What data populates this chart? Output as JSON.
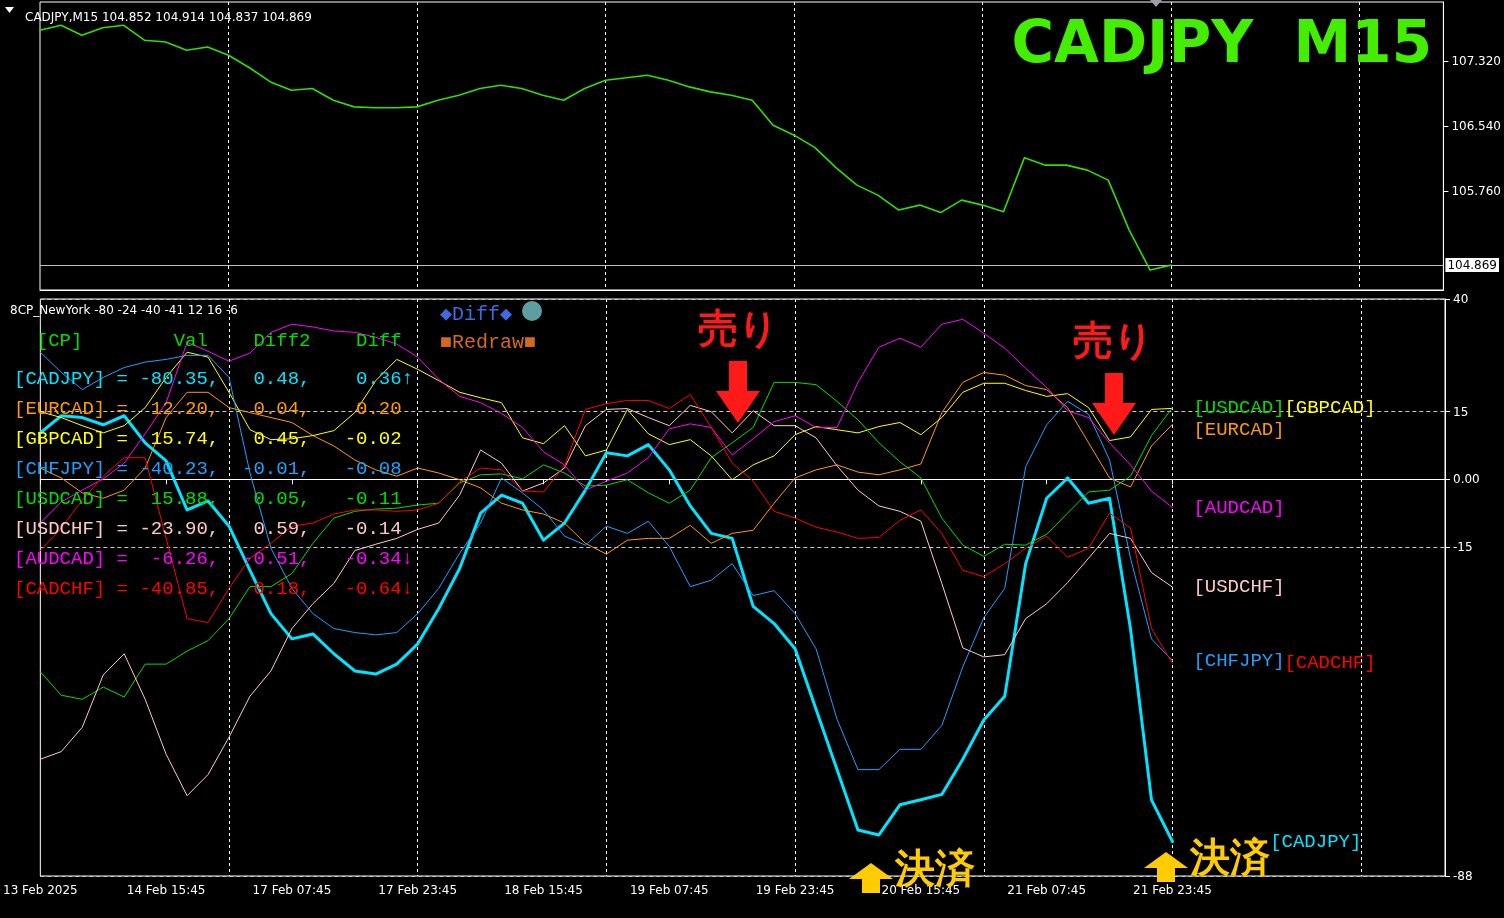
{
  "chart_data": [
    {
      "type": "line",
      "title": "CADJPY,M15 104.852 104.914 104.837 104.869",
      "subtitle": "CADJPY  M15",
      "categories": [
        null,
        null,
        null,
        null,
        null,
        null,
        null,
        null,
        null,
        null,
        null,
        null,
        null,
        null,
        null,
        null,
        null,
        null,
        null,
        null,
        null,
        null,
        null,
        null,
        null,
        null,
        null,
        null,
        null,
        null,
        null,
        null,
        null,
        null,
        null,
        null,
        null,
        null,
        null,
        null,
        null,
        null,
        null,
        null,
        null,
        null,
        null,
        null,
        null,
        null,
        null,
        null,
        null,
        null,
        null,
        null,
        null,
        null,
        null,
        null,
        null,
        null,
        null,
        null,
        null,
        null,
        null,
        null
      ],
      "series": [
        {
          "color": "#33dd00",
          "values": [
            107.69,
            107.75,
            107.63,
            107.72,
            107.75,
            107.57,
            107.55,
            107.45,
            107.49,
            107.39,
            107.24,
            107.07,
            106.97,
            106.99,
            106.85,
            106.77,
            106.76,
            106.76,
            106.77,
            106.85,
            106.91,
            106.99,
            107.03,
            106.99,
            106.91,
            106.85,
            106.99,
            107.09,
            107.12,
            107.15,
            107.09,
            107.01,
            106.95,
            106.91,
            106.85,
            106.55,
            106.43,
            106.28,
            106.04,
            105.83,
            105.71,
            105.53,
            105.59,
            105.5,
            105.65,
            105.59,
            105.51,
            106.16,
            106.07,
            106.07,
            106.01,
            105.89,
            105.29,
            104.81,
            104.869,
            null,
            null,
            null,
            null,
            null,
            null,
            null,
            null,
            null,
            null,
            null,
            null,
            null
          ]
        }
      ],
      "ylim": [
        104.57,
        108.03
      ],
      "yticks": [
        {
          "value": 105.76,
          "label": "105.760"
        },
        {
          "value": 106.54,
          "label": "106.540"
        },
        {
          "value": 107.32,
          "label": "107.320"
        }
      ],
      "ref_lines": [
        {
          "axis": "y",
          "value": 104.869,
          "label": "104.869",
          "color": "#c0c0c0"
        }
      ],
      "grid": "x",
      "tick_labels": "y",
      "marker": "none"
    },
    {
      "type": "line",
      "title": "8CP_NewYork -80 -24 -40 -41 12 16 -6",
      "categories": [
        "13 Feb 2025",
        null,
        null,
        null,
        null,
        null,
        "14 Feb 15:45",
        null,
        null,
        null,
        null,
        null,
        "17 Feb 07:45",
        null,
        null,
        null,
        null,
        null,
        "17 Feb 23:45",
        null,
        null,
        null,
        null,
        null,
        "18 Feb 15:45",
        null,
        null,
        null,
        null,
        null,
        "19 Feb 07:45",
        null,
        null,
        null,
        null,
        null,
        "19 Feb 23:45",
        null,
        null,
        null,
        null,
        null,
        "20 Feb 15:45",
        null,
        null,
        null,
        null,
        null,
        "21 Feb 07:45",
        null,
        null,
        null,
        null,
        null,
        "21 Feb 23:45",
        null,
        null,
        null,
        null,
        null,
        null,
        null,
        null,
        null,
        null,
        null,
        null,
        null
      ],
      "series": [
        {
          "name": "[CADJPY]",
          "color": "#00e5ff",
          "values": [
            10.3,
            14.1,
            13.7,
            12.1,
            14.1,
            8.1,
            4.1,
            -6.8,
            -4.8,
            -10.4,
            -20.2,
            -29.8,
            -35.4,
            -34.3,
            -38.7,
            -42.5,
            -43.2,
            -41.0,
            -36.5,
            -28.7,
            -19.8,
            -7.5,
            -3.5,
            -5.3,
            -13.5,
            -9.7,
            -2.4,
            5.9,
            5.2,
            7.7,
            2.1,
            -5.9,
            -12.0,
            -13.1,
            -28.2,
            -32.0,
            -37.6,
            -51.0,
            -64.4,
            -77.8,
            -78.9,
            -72.2,
            -71.1,
            -69.9,
            -62.1,
            -53.4,
            -48.1,
            -18.7,
            -4.2,
            0.3,
            -5.3,
            -4.2,
            -33.2,
            -71.1,
            -80.35,
            null,
            null,
            null,
            null,
            null,
            null,
            null,
            null,
            null,
            null,
            null,
            null,
            null
          ]
        },
        {
          "name": "[EURCAD]",
          "color": "#ff9900",
          "values": [
            2.5,
            0.3,
            -3.0,
            -4.2,
            -2.4,
            2.5,
            13.7,
            19.3,
            19.3,
            15.9,
            14.8,
            13.7,
            12.6,
            9.7,
            7.4,
            4.3,
            2.1,
            0.7,
            2.5,
            1.4,
            -0.1,
            -1.9,
            -5.3,
            -6.8,
            -7.7,
            -9.7,
            -14.2,
            -16.6,
            -13.5,
            -13.1,
            -13.1,
            -10.2,
            -14.2,
            -12.0,
            -11.3,
            -5.3,
            0.3,
            2.1,
            3.2,
            1.6,
            1.0,
            2.1,
            3.4,
            14.8,
            21.5,
            23.7,
            23.1,
            20.8,
            19.9,
            15.9,
            8.1,
            0.3,
            -1.7,
            7.4,
            12.2,
            null,
            null,
            null,
            null,
            null,
            null,
            null,
            null,
            null,
            null,
            null,
            null,
            null
          ]
        },
        {
          "name": "[GBPCAD]",
          "color": "#ffff00",
          "values": [
            15.0,
            13.7,
            11.9,
            10.3,
            11.9,
            15.9,
            22.6,
            28.2,
            27.1,
            19.3,
            11.0,
            8.8,
            9.0,
            9.7,
            10.8,
            14.8,
            21.9,
            26.6,
            24.4,
            21.9,
            19.3,
            18.1,
            17.0,
            9.2,
            7.9,
            11.9,
            5.2,
            6.5,
            15.5,
            10.1,
            7.7,
            8.8,
            5.2,
            -0.1,
            3.2,
            5.2,
            9.9,
            11.7,
            11.0,
            10.3,
            11.7,
            12.6,
            9.9,
            13.7,
            19.3,
            21.3,
            21.3,
            19.7,
            18.4,
            19.0,
            15.9,
            8.6,
            9.4,
            15.5,
            15.74,
            null,
            null,
            null,
            null,
            null,
            null,
            null,
            null,
            null,
            null,
            null,
            null,
            null
          ]
        },
        {
          "name": "[CHFJPY]",
          "color": "#1ea0ff",
          "values": [
            28.2,
            23.7,
            19.9,
            22.6,
            24.8,
            26.0,
            26.6,
            27.5,
            27.5,
            22.6,
            1.4,
            -15.3,
            -24.2,
            -29.8,
            -33.1,
            -34.0,
            -34.5,
            -34.0,
            -29.8,
            -24.2,
            -16.4,
            -9.7,
            0.3,
            -3.0,
            -6.8,
            -12.6,
            -14.6,
            -10.4,
            -12.0,
            -9.3,
            -14.9,
            -23.8,
            -22.4,
            -18.7,
            -25.8,
            -24.7,
            -29.8,
            -37.6,
            -53.2,
            -64.4,
            -64.4,
            -59.9,
            -59.9,
            -54.6,
            -41.6,
            -30.7,
            -24.2,
            2.8,
            12.1,
            17.3,
            14.4,
            4.3,
            -17.5,
            -35.4,
            -40.23,
            null,
            null,
            null,
            null,
            null,
            null,
            null,
            null,
            null,
            null,
            null,
            null,
            null
          ]
        },
        {
          "name": "[USDCAD]",
          "color": "#00dd00",
          "values": [
            -42.7,
            -47.9,
            -48.8,
            -46.1,
            -48.3,
            -41.0,
            -41.0,
            -38.1,
            -35.8,
            -30.9,
            -23.8,
            -23.8,
            -20.9,
            -14.2,
            -8.6,
            -7.1,
            -6.6,
            -6.4,
            -5.7,
            -5.3,
            -0.8,
            1.0,
            1.2,
            0.1,
            3.2,
            1.4,
            -1.5,
            -1.3,
            -0.1,
            -3.0,
            -5.3,
            -2.4,
            4.8,
            8.1,
            11.5,
            21.5,
            21.5,
            21.0,
            17.3,
            13.2,
            8.1,
            3.9,
            0.3,
            -8.6,
            -14.6,
            -17.1,
            -14.4,
            -14.6,
            -12.2,
            -7.5,
            -2.8,
            -2.4,
            0.7,
            9.7,
            15.88,
            null,
            null,
            null,
            null,
            null,
            null,
            null,
            null,
            null,
            null,
            null,
            null,
            null
          ]
        },
        {
          "name": "[USDCHF]",
          "color": "#ffc8c8",
          "values": [
            -62.1,
            -60.4,
            -55.0,
            -43.4,
            -38.7,
            -48.8,
            -61.0,
            -70.2,
            -65.5,
            -57.2,
            -48.1,
            -42.5,
            -33.1,
            -27.6,
            -23.1,
            -15.8,
            -14.4,
            -13.1,
            -11.1,
            -9.7,
            -3.5,
            6.5,
            3.6,
            -2.6,
            -0.8,
            2.5,
            11.9,
            15.5,
            15.7,
            13.7,
            11.9,
            16.4,
            15.0,
            10.3,
            15.2,
            11.9,
            11.9,
            9.2,
            3.0,
            -2.4,
            -5.9,
            -7.1,
            -9.3,
            -23.1,
            -37.4,
            -39.4,
            -38.9,
            -30.9,
            -27.6,
            -22.9,
            -17.5,
            -12.0,
            -13.1,
            -20.7,
            -23.9,
            null,
            null,
            null,
            null,
            null,
            null,
            null,
            null,
            null,
            null,
            null,
            null,
            null
          ]
        },
        {
          "name": "[AUDCAD]",
          "color": "#ff00ff",
          "values": [
            -9.7,
            -5.0,
            -2.4,
            0.1,
            3.6,
            10.1,
            17.0,
            30.4,
            28.4,
            26.2,
            28.0,
            32.6,
            34.4,
            33.8,
            32.9,
            32.6,
            31.5,
            30.0,
            27.1,
            22.2,
            18.4,
            17.0,
            14.6,
            11.5,
            6.1,
            3.2,
            -2.4,
            -0.4,
            1.4,
            4.8,
            11.2,
            12.3,
            11.5,
            5.4,
            9.0,
            12.8,
            14.1,
            11.5,
            11.5,
            21.5,
            29.3,
            31.3,
            29.3,
            34.4,
            35.5,
            32.4,
            29.1,
            24.6,
            20.4,
            15.2,
            13.7,
            8.1,
            3.2,
            -2.6,
            -6.26,
            null,
            null,
            null,
            null,
            null,
            null,
            null,
            null,
            null,
            null,
            null,
            null,
            null
          ]
        },
        {
          "name": "[CADCHF]",
          "color": "#ff0000",
          "values": [
            -15.8,
            -10.8,
            -4.6,
            0.7,
            4.8,
            4.8,
            -13.1,
            -30.9,
            -31.8,
            -24.2,
            -17.5,
            -14.2,
            -10.4,
            -9.7,
            -7.7,
            -6.8,
            -6.8,
            -7.1,
            -6.8,
            -5.3,
            -0.6,
            2.5,
            2.1,
            -2.6,
            -2.8,
            3.0,
            15.5,
            16.8,
            17.5,
            17.5,
            15.7,
            18.8,
            11.5,
            3.6,
            -0.4,
            -7.1,
            -8.6,
            -10.6,
            -11.7,
            -13.1,
            -12.9,
            -9.1,
            -6.8,
            -12.0,
            -20.2,
            -21.6,
            -18.7,
            -15.3,
            -12.6,
            -17.3,
            -15.3,
            -7.5,
            -10.8,
            -33.1,
            -40.85,
            null,
            null,
            null,
            null,
            null,
            null,
            null,
            null,
            null,
            null,
            null,
            null,
            null
          ]
        }
      ],
      "ylim": [
        -88,
        40
      ],
      "yticks": [
        -88,
        -15,
        {
          "value": 0,
          "label": "0.00"
        },
        15,
        40
      ],
      "annotations": [
        "  [CP]        Val    Diff2    Diff",
        "[CADJPY] = -80.35,   0.48,    0.36↑",
        "[EURCAD] =  12.20,   0.04,    0.20",
        "[GBPCAD] =  15.74,   0.45,   -0.02",
        "[CHFJPY] = -40.23,  -0.01,   -0.08",
        "[USDCAD] =  15.88,   0.05,   -0.11",
        "[USDCHF] = -23.90,   0.59,   -0.14",
        "[AUDCAD] =  -6.26,  -0.51,   -0.34↓",
        "[CADCHF] = -40.85,   0.18,   -0.64↓",
        "◆Diff◆",
        "■Redraw■",
        {
          "text": "売り",
          "y": 12.6
        },
        {
          "text": "売り",
          "y": 9.9
        },
        "決済",
        "決済"
      ],
      "grid": true,
      "marker": "none"
    }
  ]
}
